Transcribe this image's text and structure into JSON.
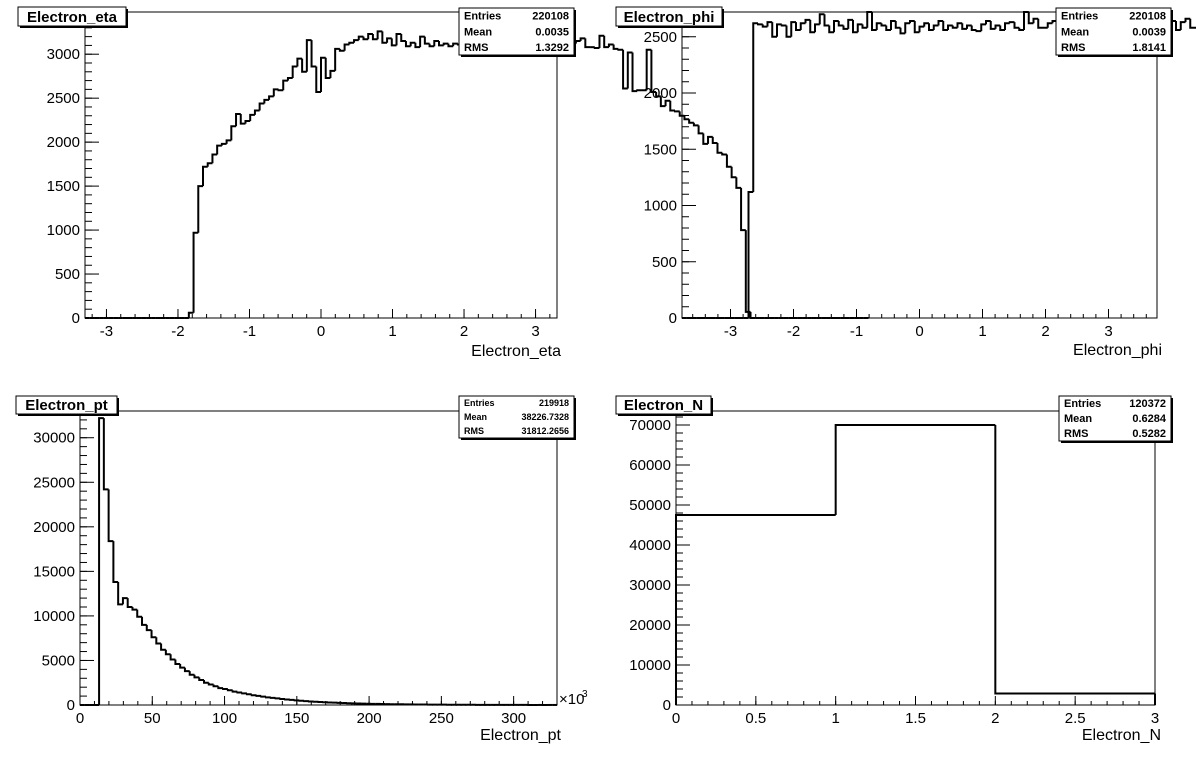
{
  "chart_data": [
    {
      "type": "bar",
      "name": "Electron_eta",
      "title": "Electron_eta",
      "xlabel": "Electron_eta",
      "ylabel": "",
      "stats": [
        {
          "label": "Entries",
          "value": "220108"
        },
        {
          "label": "Mean",
          "value": "0.0035"
        },
        {
          "label": "RMS",
          "value": "1.3292"
        }
      ],
      "xlim": [
        -3.3,
        3.3
      ],
      "ylim": [
        0,
        3480
      ],
      "xticks": [
        -3,
        -2,
        -1,
        0,
        1,
        2,
        3
      ],
      "xtick_labels": [
        "-3",
        "-2",
        "-1",
        "0",
        "1",
        "2",
        "3"
      ],
      "yticks": [
        0,
        500,
        1000,
        1500,
        2000,
        2500,
        3000
      ],
      "ytick_labels": [
        "0",
        "500",
        "1000",
        "1500",
        "2000",
        "2500",
        "3000"
      ],
      "x_minor_step": 0.2,
      "y_minor_step": 100,
      "bin_start": -3.3,
      "bin_width": 0.066,
      "values": [
        0,
        0,
        0,
        0,
        0,
        0,
        0,
        0,
        0,
        0,
        0,
        0,
        0,
        0,
        0,
        0,
        0,
        0,
        0,
        0,
        0,
        0,
        60,
        970,
        1500,
        1720,
        1760,
        1860,
        1960,
        1980,
        2020,
        2180,
        2320,
        2210,
        2240,
        2310,
        2360,
        2440,
        2480,
        2520,
        2600,
        2590,
        2700,
        2730,
        2860,
        2950,
        2800,
        3160,
        2860,
        2570,
        2960,
        2730,
        2810,
        3060,
        3040,
        3110,
        3130,
        3160,
        3200,
        3170,
        3230,
        3170,
        3260,
        3130,
        3180,
        3100,
        3230,
        3150,
        3090,
        3130,
        3080,
        3200,
        3120,
        3090,
        3150,
        3100,
        3120,
        3090,
        3120,
        3110,
        3070,
        3110,
        3110,
        3180,
        3130,
        3110,
        3140,
        3110,
        3200,
        3230,
        3180,
        3190,
        3120,
        3230,
        3200,
        3240,
        3230,
        3170,
        3220,
        3180,
        3310,
        3130,
        3210,
        3120,
        3150,
        3180,
        3080,
        3080,
        3070,
        3210,
        3080,
        3110,
        3060,
        3050,
        2610,
        3020,
        2580,
        2590,
        2590,
        3050,
        2570,
        2520,
        2410,
        2470,
        2360,
        2350,
        2300,
        2260,
        2220,
        2190,
        2100,
        1980,
        2060,
        1990,
        1880,
        1860,
        1720,
        1600,
        1480,
        1000,
        70,
        0,
        0,
        0,
        0,
        0,
        0,
        0,
        0,
        0,
        0,
        0,
        0,
        0,
        0,
        0,
        0,
        0,
        0,
        0,
        0,
        0,
        0,
        0,
        0,
        0
      ]
    },
    {
      "type": "bar",
      "name": "Electron_phi",
      "title": "Electron_phi",
      "xlabel": "Electron_phi",
      "ylabel": "",
      "stats": [
        {
          "label": "Entries",
          "value": "220108"
        },
        {
          "label": "Mean",
          "value": "0.0039"
        },
        {
          "label": "RMS",
          "value": "1.8141"
        }
      ],
      "xlim": [
        -3.77,
        3.77
      ],
      "ylim": [
        0,
        2720
      ],
      "xticks": [
        -3,
        -2,
        -1,
        0,
        1,
        2,
        3
      ],
      "xtick_labels": [
        "-3",
        "-2",
        "-1",
        "0",
        "1",
        "2",
        "3"
      ],
      "yticks": [
        0,
        500,
        1000,
        1500,
        2000,
        2500
      ],
      "ytick_labels": [
        "0",
        "500",
        "1000",
        "1500",
        "2000",
        "2500"
      ],
      "x_minor_step": 0.2,
      "y_minor_step": 100,
      "bin_start": -3.77,
      "bin_width": 0.0754,
      "values": [
        0,
        0,
        0,
        0,
        0,
        0,
        0,
        0,
        0,
        0,
        0,
        0,
        0,
        0,
        1120,
        2620,
        2610,
        2590,
        2630,
        2500,
        2610,
        2600,
        2500,
        2630,
        2560,
        2620,
        2650,
        2540,
        2610,
        2700,
        2600,
        2540,
        2640,
        2600,
        2570,
        2650,
        2540,
        2610,
        2580,
        2730,
        2560,
        2620,
        2600,
        2560,
        2640,
        2580,
        2530,
        2620,
        2640,
        2540,
        2590,
        2620,
        2560,
        2600,
        2640,
        2560,
        2600,
        2580,
        2620,
        2570,
        2600,
        2560,
        2550,
        2610,
        2640,
        2570,
        2600,
        2560,
        2620,
        2630,
        2580,
        2560,
        2730,
        2620,
        2660,
        2580,
        2580,
        2620,
        2640,
        2690,
        2580,
        2620,
        2590,
        2620,
        2640,
        2600,
        2540,
        2620,
        2650,
        2560,
        2620,
        2620,
        2540,
        2600,
        2640,
        2530,
        2700,
        2620,
        2640,
        2560,
        2640,
        2600,
        2580,
        2640,
        2560,
        2630,
        2660,
        2580,
        2580,
        2600,
        2560,
        2620,
        2640,
        2560,
        2570,
        1190,
        0,
        0,
        0,
        0,
        0,
        0,
        0,
        0,
        0,
        0,
        0,
        0,
        0,
        0,
        0,
        0,
        0,
        0,
        0
      ]
    },
    {
      "type": "bar",
      "name": "Electron_pt",
      "title": "Electron_pt",
      "xlabel": "Electron_pt",
      "x_multiplier": "×10",
      "x_multiplier_exp": "3",
      "ylabel": "",
      "stats": [
        {
          "label": "Entries",
          "value": "219918"
        },
        {
          "label": "Mean",
          "value": "38226.7328"
        },
        {
          "label": "RMS",
          "value": "31812.2656"
        }
      ],
      "xlim": [
        0,
        330
      ],
      "ylim": [
        0,
        33000
      ],
      "xticks": [
        0,
        50,
        100,
        150,
        200,
        250,
        300
      ],
      "xtick_labels": [
        "0",
        "50",
        "100",
        "150",
        "200",
        "250",
        "300"
      ],
      "yticks": [
        0,
        5000,
        10000,
        15000,
        20000,
        25000,
        30000
      ],
      "ytick_labels": [
        "0",
        "5000",
        "10000",
        "15000",
        "20000",
        "25000",
        "30000"
      ],
      "x_minor_step": 10,
      "y_minor_step": 1000,
      "bin_start": 0,
      "bin_width": 3.3,
      "values": [
        0,
        0,
        0,
        0,
        32200,
        24200,
        18400,
        13800,
        11300,
        12000,
        11000,
        10700,
        9900,
        9000,
        8400,
        7600,
        6900,
        6200,
        5700,
        5100,
        4600,
        4200,
        3800,
        3400,
        3100,
        2800,
        2500,
        2300,
        2100,
        1900,
        1800,
        1650,
        1500,
        1400,
        1300,
        1200,
        1100,
        1020,
        940,
        860,
        800,
        740,
        680,
        620,
        570,
        520,
        480,
        440,
        400,
        370,
        340,
        310,
        280,
        260,
        240,
        220,
        200,
        185,
        170,
        155,
        140,
        130,
        120,
        110,
        100,
        90,
        85,
        80,
        70,
        65,
        60,
        55,
        50,
        45,
        42,
        40,
        36,
        33,
        30,
        28,
        26,
        24,
        22,
        20,
        18,
        16,
        15,
        14,
        13,
        12,
        11,
        10,
        9,
        8,
        7,
        6,
        6,
        5,
        5,
        4
      ]
    },
    {
      "type": "bar",
      "name": "Electron_N",
      "title": "Electron_N",
      "xlabel": "Electron_N",
      "ylabel": "",
      "stats": [
        {
          "label": "Entries",
          "value": "120372"
        },
        {
          "label": "Mean",
          "value": "0.6284"
        },
        {
          "label": "RMS",
          "value": "0.5282"
        }
      ],
      "xlim": [
        0,
        3
      ],
      "ylim": [
        0,
        73500
      ],
      "xticks": [
        0,
        0.5,
        1,
        1.5,
        2,
        2.5,
        3
      ],
      "xtick_labels": [
        "0",
        "0.5",
        "1",
        "1.5",
        "2",
        "2.5",
        "3"
      ],
      "yticks": [
        0,
        10000,
        20000,
        30000,
        40000,
        50000,
        60000,
        70000
      ],
      "ytick_labels": [
        "0",
        "10000",
        "20000",
        "30000",
        "40000",
        "50000",
        "60000",
        "70000"
      ],
      "x_minor_step": 0.1,
      "y_minor_step": 2000,
      "bin_start": 0,
      "bin_width": 1,
      "values": [
        47500,
        70000,
        2870
      ]
    }
  ]
}
